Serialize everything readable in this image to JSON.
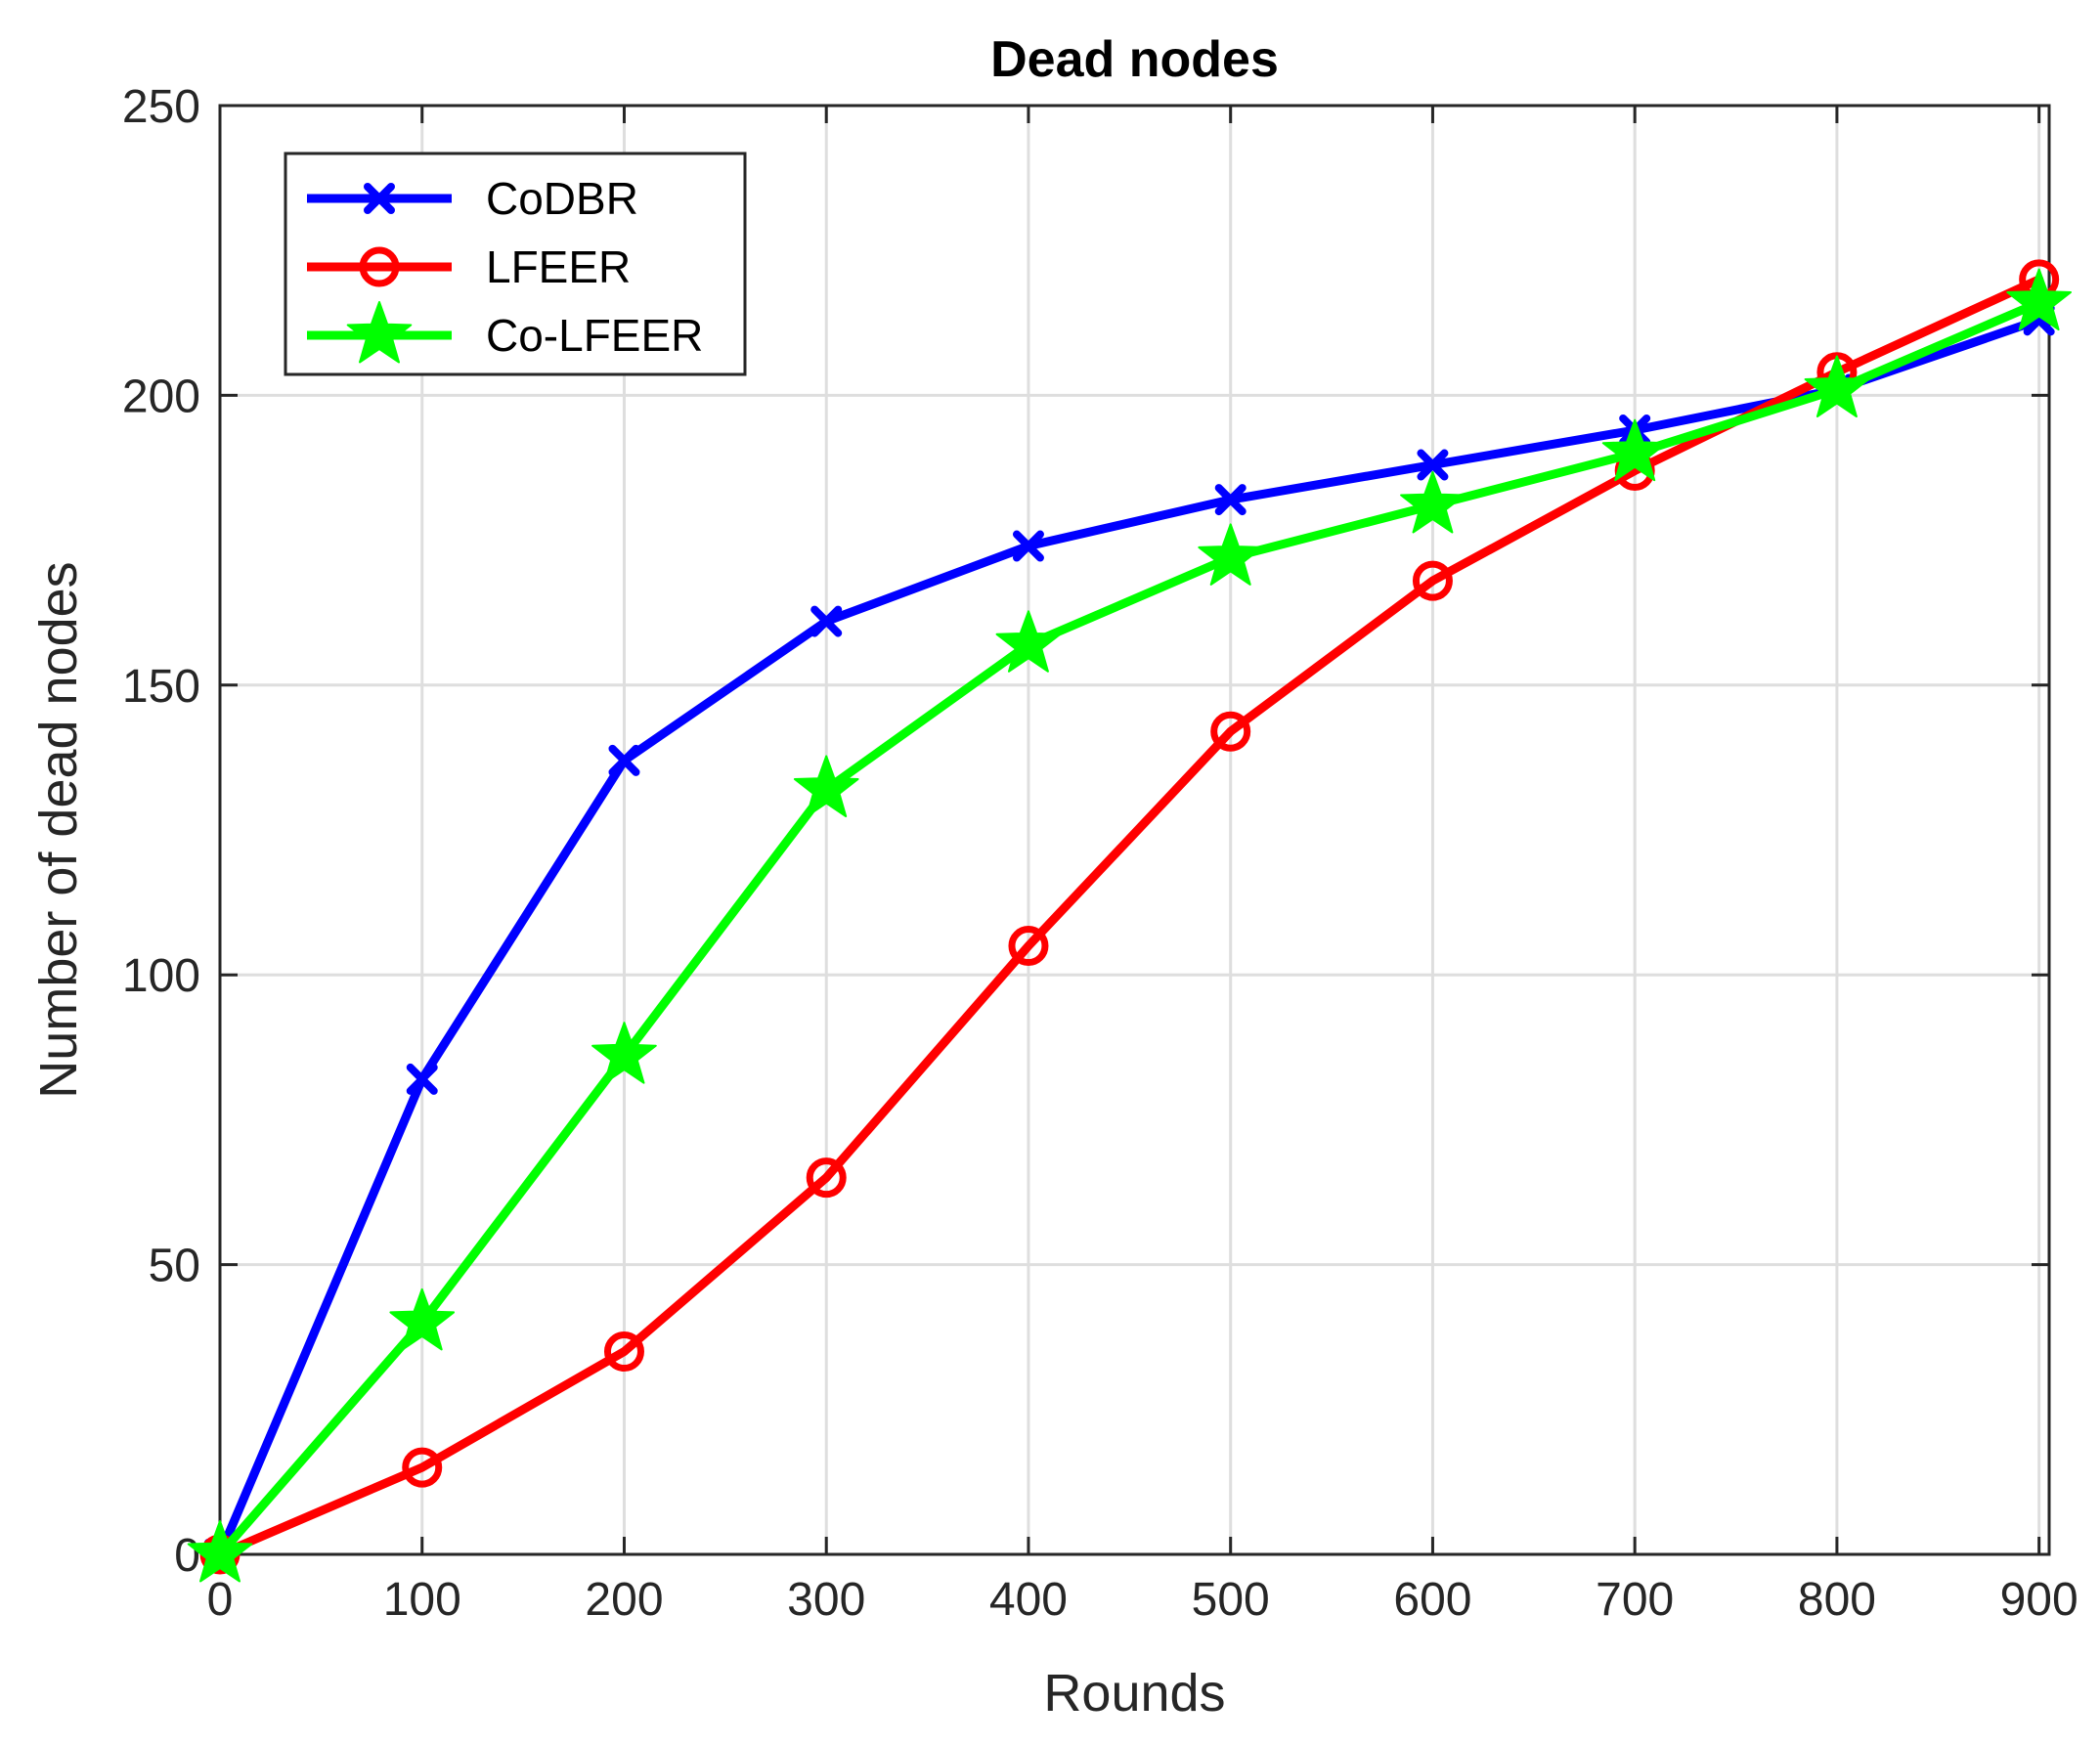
{
  "chart_data": {
    "type": "line",
    "title": "Dead nodes",
    "xlabel": "Rounds",
    "ylabel": "Number of dead nodes",
    "xlim": [
      0,
      905
    ],
    "ylim": [
      0,
      250
    ],
    "xticks": [
      0,
      100,
      200,
      300,
      400,
      500,
      600,
      700,
      800,
      900
    ],
    "yticks": [
      0,
      50,
      100,
      150,
      200,
      250
    ],
    "grid": true,
    "legend_position": "top-left",
    "x": [
      0,
      100,
      200,
      300,
      400,
      500,
      600,
      700,
      800,
      900
    ],
    "series": [
      {
        "name": "CoDBR",
        "color": "#0000ff",
        "marker": "x-icon",
        "values": [
          0,
          82,
          137,
          161,
          174,
          182,
          188,
          194,
          201,
          213
        ]
      },
      {
        "name": "LFEER",
        "color": "#ff0000",
        "marker": "circle-icon",
        "values": [
          0,
          15,
          35,
          65,
          105,
          142,
          168,
          187,
          204,
          220
        ]
      },
      {
        "name": "Co-LFEER",
        "color": "#00ff00",
        "marker": "star-icon",
        "values": [
          0,
          40,
          86,
          132,
          157,
          172,
          181,
          190,
          201,
          216
        ]
      }
    ]
  }
}
